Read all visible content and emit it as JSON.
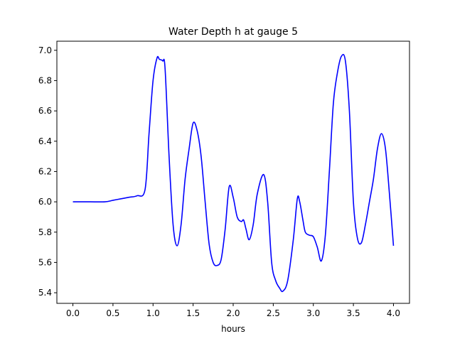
{
  "chart_data": {
    "type": "line",
    "title": "Water Depth h at gauge 5",
    "xlabel": "hours",
    "ylabel": "",
    "xlim": [
      -0.2,
      4.2
    ],
    "ylim": [
      5.33,
      7.06
    ],
    "xticks": [
      0.0,
      0.5,
      1.0,
      1.5,
      2.0,
      2.5,
      3.0,
      3.5,
      4.0
    ],
    "xtick_labels": [
      "0.0",
      "0.5",
      "1.0",
      "1.5",
      "2.0",
      "2.5",
      "3.0",
      "3.5",
      "4.0"
    ],
    "yticks": [
      5.4,
      5.6,
      5.8,
      6.0,
      6.2,
      6.4,
      6.6,
      6.8,
      7.0
    ],
    "ytick_labels": [
      "5.4",
      "5.6",
      "5.8",
      "6.0",
      "6.2",
      "6.4",
      "6.6",
      "6.8",
      "7.0"
    ],
    "grid": false,
    "series": [
      {
        "color": "#0000ff",
        "x": [
          0.0,
          0.2,
          0.4,
          0.5,
          0.6,
          0.7,
          0.8,
          0.9,
          0.95,
          1.0,
          1.05,
          1.08,
          1.12,
          1.15,
          1.2,
          1.25,
          1.3,
          1.35,
          1.4,
          1.45,
          1.5,
          1.55,
          1.6,
          1.65,
          1.7,
          1.75,
          1.8,
          1.85,
          1.9,
          1.95,
          2.0,
          2.05,
          2.1,
          2.13,
          2.16,
          2.2,
          2.25,
          2.3,
          2.38,
          2.43,
          2.48,
          2.53,
          2.58,
          2.62,
          2.68,
          2.75,
          2.8,
          2.83,
          2.87,
          2.9,
          2.95,
          3.0,
          3.05,
          3.1,
          3.15,
          3.2,
          3.25,
          3.3,
          3.35,
          3.4,
          3.45,
          3.5,
          3.55,
          3.6,
          3.65,
          3.7,
          3.75,
          3.8,
          3.85,
          3.9,
          3.95,
          4.0
        ],
        "y": [
          6.0,
          6.0,
          6.0,
          6.01,
          6.02,
          6.03,
          6.04,
          6.08,
          6.45,
          6.8,
          6.95,
          6.94,
          6.93,
          6.88,
          6.3,
          5.85,
          5.71,
          5.85,
          6.15,
          6.35,
          6.52,
          6.47,
          6.3,
          6.0,
          5.72,
          5.6,
          5.58,
          5.62,
          5.82,
          6.1,
          6.03,
          5.9,
          5.87,
          5.88,
          5.82,
          5.75,
          5.85,
          6.05,
          6.18,
          6.0,
          5.6,
          5.48,
          5.43,
          5.41,
          5.48,
          5.75,
          6.02,
          6.0,
          5.88,
          5.8,
          5.78,
          5.77,
          5.7,
          5.61,
          5.78,
          6.2,
          6.65,
          6.85,
          6.96,
          6.93,
          6.6,
          6.0,
          5.76,
          5.73,
          5.85,
          6.0,
          6.15,
          6.35,
          6.45,
          6.35,
          6.05,
          5.71
        ]
      }
    ]
  }
}
